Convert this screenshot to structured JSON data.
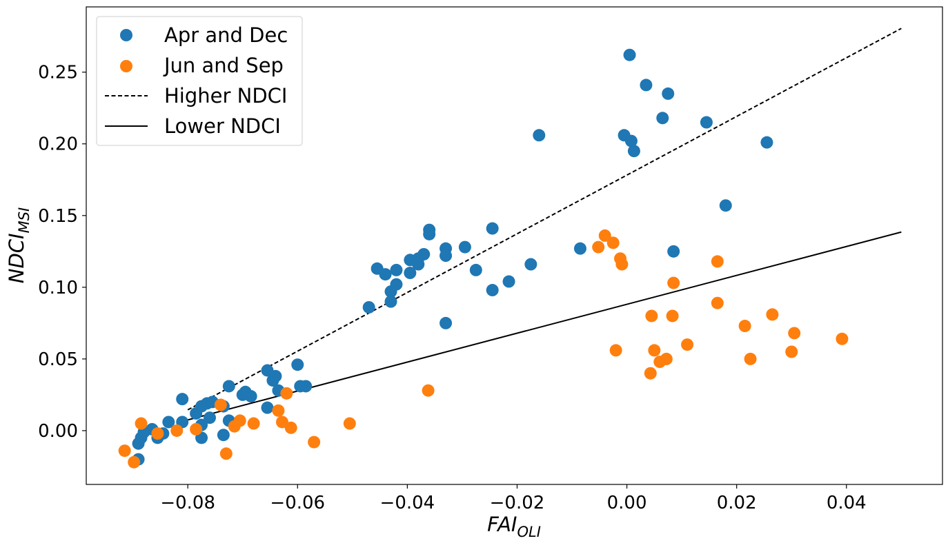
{
  "chart_data": {
    "type": "scatter",
    "title": "",
    "xlabel": {
      "main": "FAI",
      "sub": "OLI"
    },
    "ylabel": {
      "main": "NDCI",
      "sub": "MSI"
    },
    "xlim": [
      -0.0985,
      0.0575
    ],
    "ylim": [
      -0.0375,
      0.2955
    ],
    "xticks": [
      -0.08,
      -0.06,
      -0.04,
      -0.02,
      0.0,
      0.02,
      0.04
    ],
    "xtick_labels": [
      "−0.08",
      "−0.06",
      "−0.04",
      "−0.02",
      "0.00",
      "0.02",
      "0.04"
    ],
    "yticks": [
      0.0,
      0.05,
      0.1,
      0.15,
      0.2,
      0.25
    ],
    "ytick_labels": [
      "0.00",
      "0.05",
      "0.10",
      "0.15",
      "0.20",
      "0.25"
    ],
    "grid": false,
    "legend_position": "top-left",
    "series": [
      {
        "name": "Apr and Dec",
        "kind": "points",
        "color": "#1f77b4",
        "points": [
          [
            0.0005,
            0.262
          ],
          [
            0.0035,
            0.241
          ],
          [
            0.0075,
            0.235
          ],
          [
            0.0065,
            0.218
          ],
          [
            0.0145,
            0.215
          ],
          [
            -0.0005,
            0.206
          ],
          [
            0.0008,
            0.202
          ],
          [
            0.0013,
            0.195
          ],
          [
            0.0255,
            0.201
          ],
          [
            -0.016,
            0.206
          ],
          [
            0.018,
            0.157
          ],
          [
            0.0085,
            0.125
          ],
          [
            -0.0085,
            0.127
          ],
          [
            -0.0245,
            0.141
          ],
          [
            -0.036,
            0.14
          ],
          [
            -0.036,
            0.137
          ],
          [
            -0.033,
            0.127
          ],
          [
            -0.0295,
            0.128
          ],
          [
            -0.033,
            0.122
          ],
          [
            -0.037,
            0.123
          ],
          [
            -0.038,
            0.12
          ],
          [
            -0.0395,
            0.119
          ],
          [
            -0.038,
            0.116
          ],
          [
            -0.0395,
            0.11
          ],
          [
            -0.0175,
            0.116
          ],
          [
            -0.0275,
            0.112
          ],
          [
            -0.0215,
            0.104
          ],
          [
            -0.0245,
            0.098
          ],
          [
            -0.0455,
            0.113
          ],
          [
            -0.044,
            0.109
          ],
          [
            -0.042,
            0.112
          ],
          [
            -0.042,
            0.102
          ],
          [
            -0.043,
            0.097
          ],
          [
            -0.043,
            0.09
          ],
          [
            -0.047,
            0.086
          ],
          [
            -0.033,
            0.075
          ],
          [
            -0.06,
            0.046
          ],
          [
            -0.0655,
            0.042
          ],
          [
            -0.064,
            0.038
          ],
          [
            -0.0645,
            0.035
          ],
          [
            -0.0635,
            0.028
          ],
          [
            -0.0585,
            0.031
          ],
          [
            -0.0595,
            0.031
          ],
          [
            -0.0725,
            0.031
          ],
          [
            -0.0695,
            0.027
          ],
          [
            -0.07,
            0.025
          ],
          [
            -0.0685,
            0.024
          ],
          [
            -0.081,
            0.022
          ],
          [
            -0.0765,
            0.019
          ],
          [
            -0.0755,
            0.02
          ],
          [
            -0.0775,
            0.017
          ],
          [
            -0.0735,
            0.017
          ],
          [
            -0.0655,
            0.016
          ],
          [
            -0.0785,
            0.012
          ],
          [
            -0.076,
            0.009
          ],
          [
            -0.0725,
            0.007
          ],
          [
            -0.0835,
            0.006
          ],
          [
            -0.081,
            0.006
          ],
          [
            -0.0775,
            0.004
          ],
          [
            -0.0865,
            0.001
          ],
          [
            -0.088,
            -0.001
          ],
          [
            -0.0845,
            -0.002
          ],
          [
            -0.0735,
            -0.003
          ],
          [
            -0.0855,
            -0.005
          ],
          [
            -0.0775,
            -0.005
          ],
          [
            -0.0885,
            -0.005
          ],
          [
            -0.089,
            -0.009
          ],
          [
            -0.089,
            -0.02
          ]
        ]
      },
      {
        "name": "Jun and Sep",
        "kind": "points",
        "color": "#ff7f0e",
        "points": [
          [
            -0.004,
            0.136
          ],
          [
            -0.0025,
            0.131
          ],
          [
            -0.0052,
            0.128
          ],
          [
            -0.0012,
            0.12
          ],
          [
            -0.0009,
            0.116
          ],
          [
            0.0165,
            0.118
          ],
          [
            0.0085,
            0.103
          ],
          [
            0.0165,
            0.089
          ],
          [
            0.0045,
            0.08
          ],
          [
            0.0083,
            0.08
          ],
          [
            0.0265,
            0.081
          ],
          [
            0.0215,
            0.073
          ],
          [
            0.0305,
            0.068
          ],
          [
            0.0392,
            0.064
          ],
          [
            0.011,
            0.06
          ],
          [
            0.03,
            0.055
          ],
          [
            0.0225,
            0.05
          ],
          [
            -0.002,
            0.056
          ],
          [
            0.005,
            0.056
          ],
          [
            0.0072,
            0.05
          ],
          [
            0.006,
            0.048
          ],
          [
            0.0043,
            0.04
          ],
          [
            -0.0362,
            0.028
          ],
          [
            -0.062,
            0.026
          ],
          [
            -0.074,
            0.018
          ],
          [
            -0.0635,
            0.014
          ],
          [
            -0.0705,
            0.007
          ],
          [
            -0.0628,
            0.006
          ],
          [
            -0.0715,
            0.003
          ],
          [
            -0.068,
            0.005
          ],
          [
            -0.0505,
            0.005
          ],
          [
            -0.0612,
            0.002
          ],
          [
            -0.0785,
            0.001
          ],
          [
            -0.082,
            0.0
          ],
          [
            -0.0855,
            -0.002
          ],
          [
            -0.0885,
            0.005
          ],
          [
            -0.057,
            -0.008
          ],
          [
            -0.073,
            -0.016
          ],
          [
            -0.0915,
            -0.014
          ],
          [
            -0.0898,
            -0.022
          ]
        ]
      },
      {
        "name": "Higher NDCI",
        "kind": "line",
        "color": "#000000",
        "dash": "dashed",
        "x": [
          -0.08,
          0.05
        ],
        "y": [
          0.0145,
          0.2805
        ]
      },
      {
        "name": "Lower NDCI",
        "kind": "line",
        "color": "#000000",
        "dash": "solid",
        "x": [
          -0.08,
          0.05
        ],
        "y": [
          0.0075,
          0.1385
        ]
      }
    ]
  }
}
